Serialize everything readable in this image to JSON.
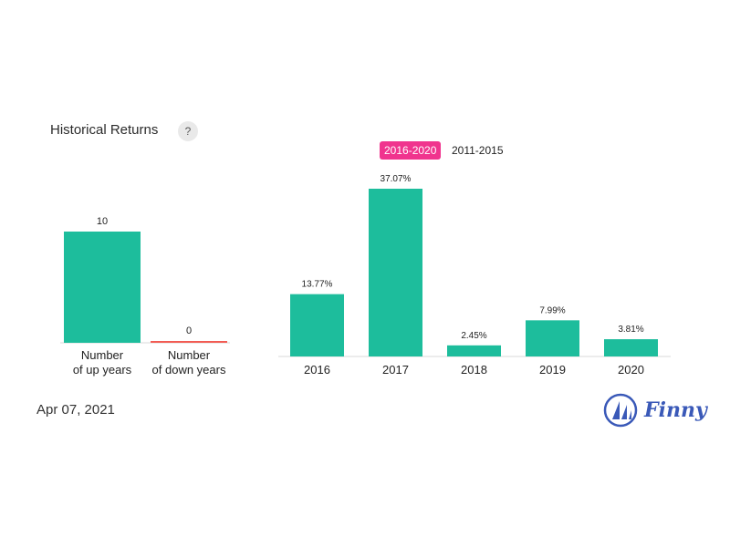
{
  "header": {
    "title": "Historical Returns",
    "help_label": "?",
    "tabs": [
      {
        "label": "2016-2020",
        "active": true
      },
      {
        "label": "2011-2015",
        "active": false
      }
    ]
  },
  "chart_data": [
    {
      "type": "bar",
      "categories": [
        "Number\nof up years",
        "Number\nof down years"
      ],
      "values": [
        10,
        0
      ],
      "data_labels": [
        "10",
        "0"
      ],
      "colors": [
        "#1dbd9c",
        "#f25c54"
      ],
      "ylim": [
        0,
        10
      ]
    },
    {
      "type": "bar",
      "categories": [
        "2016",
        "2017",
        "2018",
        "2019",
        "2020"
      ],
      "values": [
        13.77,
        37.07,
        2.45,
        7.99,
        3.81
      ],
      "data_labels": [
        "13.77%",
        "37.07%",
        "2.45%",
        "7.99%",
        "3.81%"
      ],
      "color": "#1dbd9c",
      "ylim": [
        0,
        37.07
      ]
    }
  ],
  "footer": {
    "date": "Apr 07, 2021",
    "brand": "Finny",
    "brand_icon": "sailboat-icon",
    "brand_color": "#3a59b8"
  }
}
